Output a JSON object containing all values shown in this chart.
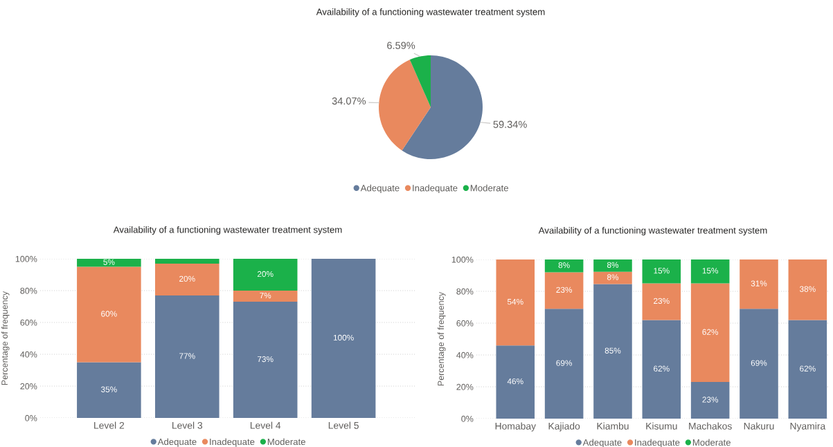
{
  "chart_data": [
    {
      "type": "pie",
      "title": "Availability of a functioning wastewater treatment system",
      "categories": [
        "Adequate",
        "Inadequate",
        "Moderate"
      ],
      "values": [
        59.34,
        34.07,
        6.59
      ],
      "colors": [
        "#657c9c",
        "#e9895e",
        "#1bb14a"
      ],
      "value_labels": [
        "59.34%",
        "34.07%",
        "6.59%"
      ],
      "legend": "bottom"
    },
    {
      "type": "bar",
      "stacked": true,
      "title": "Availability of a functioning wastewater treatment system",
      "ylabel": "Percentage of frequency",
      "categories": [
        "Level 2",
        "Level 3",
        "Level 4",
        "Level 5"
      ],
      "series": [
        {
          "name": "Adequate",
          "color": "#657c9c",
          "values": [
            35,
            77,
            73,
            100
          ],
          "value_labels": [
            "35%",
            "77%",
            "73%",
            "100%"
          ]
        },
        {
          "name": "Inadequate",
          "color": "#e9895e",
          "values": [
            60,
            20,
            7,
            null
          ],
          "value_labels": [
            "60%",
            "20%",
            "7%",
            null
          ]
        },
        {
          "name": "Moderate",
          "color": "#1bb14a",
          "values": [
            5,
            3,
            20,
            null
          ],
          "value_labels": [
            "5%",
            null,
            "20%",
            null
          ]
        }
      ],
      "ylim": [
        0,
        100
      ],
      "yticks": [
        {
          "value": 0,
          "label": "0%"
        },
        {
          "value": 20,
          "label": "20%"
        },
        {
          "value": 40,
          "label": "40%"
        },
        {
          "value": 60,
          "label": "60%"
        },
        {
          "value": 80,
          "label": "80%"
        },
        {
          "value": 100,
          "label": "100%"
        }
      ],
      "grid": "y",
      "legend": "bottom"
    },
    {
      "type": "bar",
      "stacked": true,
      "title": "Availability of a functioning wastewater treatment system",
      "ylabel": "Percentage of frequency",
      "categories": [
        "Homabay",
        "Kajiado",
        "Kiambu",
        "Kisumu",
        "Machakos",
        "Nakuru",
        "Nyamira"
      ],
      "series": [
        {
          "name": "Adequate",
          "color": "#657c9c",
          "values": [
            46,
            69,
            84.6,
            62,
            23,
            69,
            62
          ],
          "value_labels": [
            "46%",
            "69%",
            "85%",
            "62%",
            "23%",
            "69%",
            "62%"
          ]
        },
        {
          "name": "Inadequate",
          "color": "#e9895e",
          "values": [
            54,
            23,
            7.7,
            23,
            62,
            31,
            38
          ],
          "value_labels": [
            "54%",
            "23%",
            "8%",
            "23%",
            "62%",
            "31%",
            "38%"
          ]
        },
        {
          "name": "Moderate",
          "color": "#1bb14a",
          "values": [
            null,
            8,
            7.7,
            15,
            15,
            null,
            null
          ],
          "value_labels": [
            null,
            "8%",
            "8%",
            "15%",
            "15%",
            null,
            null
          ]
        }
      ],
      "ylim": [
        0,
        100
      ],
      "yticks": [
        {
          "value": 0,
          "label": "0%"
        },
        {
          "value": 20,
          "label": "20%"
        },
        {
          "value": 40,
          "label": "40%"
        },
        {
          "value": 60,
          "label": "60%"
        },
        {
          "value": 80,
          "label": "80%"
        },
        {
          "value": 100,
          "label": "100%"
        }
      ],
      "grid": "y",
      "legend": "bottom"
    }
  ]
}
